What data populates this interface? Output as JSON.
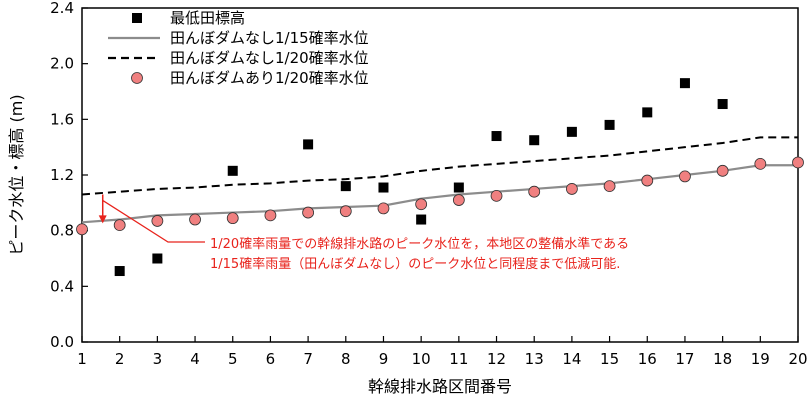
{
  "chart_data": {
    "type": "scatter",
    "xlabel": "幹線排水路区間番号",
    "ylabel": "ピーク水位・標高 (m)",
    "xlim": [
      1,
      20
    ],
    "ylim": [
      0.0,
      2.4
    ],
    "x_ticks": [
      1,
      2,
      3,
      4,
      5,
      6,
      7,
      8,
      9,
      10,
      11,
      12,
      13,
      14,
      15,
      16,
      17,
      18,
      19,
      20
    ],
    "y_ticks": [
      "0.0",
      "0.4",
      "0.8",
      "1.2",
      "1.6",
      "2.0",
      "2.4"
    ],
    "legend_position": "top-left",
    "series": [
      {
        "name": "最低田標高",
        "kind": "square-marker",
        "color": "#000000",
        "x": [
          2,
          3,
          5,
          7,
          8,
          9,
          10,
          11,
          12,
          13,
          14,
          15,
          16,
          17,
          18
        ],
        "y": [
          0.51,
          0.6,
          1.23,
          1.42,
          1.12,
          1.11,
          0.88,
          1.11,
          1.48,
          1.45,
          1.51,
          1.56,
          1.65,
          1.86,
          1.71
        ]
      },
      {
        "name": "田んぼダムなし1/15確率水位",
        "kind": "solid-line",
        "color": "#8c8c8c",
        "x": [
          1,
          2,
          3,
          4,
          5,
          6,
          7,
          8,
          9,
          10,
          11,
          12,
          13,
          14,
          15,
          16,
          17,
          18,
          19,
          20
        ],
        "y": [
          0.86,
          0.88,
          0.91,
          0.92,
          0.93,
          0.94,
          0.96,
          0.97,
          0.98,
          1.03,
          1.06,
          1.08,
          1.1,
          1.12,
          1.14,
          1.17,
          1.2,
          1.23,
          1.27,
          1.27
        ]
      },
      {
        "name": "田んぼダムなし1/20確率水位",
        "kind": "dashed-line",
        "color": "#000000",
        "x": [
          1,
          2,
          3,
          4,
          5,
          6,
          7,
          8,
          9,
          10,
          11,
          12,
          13,
          14,
          15,
          16,
          17,
          18,
          19,
          20
        ],
        "y": [
          1.06,
          1.08,
          1.1,
          1.11,
          1.13,
          1.14,
          1.16,
          1.17,
          1.19,
          1.23,
          1.26,
          1.28,
          1.3,
          1.32,
          1.34,
          1.37,
          1.4,
          1.43,
          1.47,
          1.47
        ]
      },
      {
        "name": "田んぼダムあり1/20確率水位",
        "kind": "circle-marker",
        "color": "#f08080",
        "x": [
          1,
          2,
          3,
          4,
          5,
          6,
          7,
          8,
          9,
          10,
          11,
          12,
          13,
          14,
          15,
          16,
          17,
          18,
          19,
          20
        ],
        "y": [
          0.81,
          0.84,
          0.87,
          0.88,
          0.89,
          0.91,
          0.93,
          0.94,
          0.96,
          0.99,
          1.02,
          1.05,
          1.08,
          1.1,
          1.12,
          1.16,
          1.19,
          1.23,
          1.28,
          1.29
        ]
      }
    ],
    "annotation": {
      "lines": [
        "1/20確率雨量での幹線排水路のピーク水位を，本地区の整備水準である",
        "1/15確率雨量（田んぼダムなし）のピーク水位と同程度まで低減可能."
      ],
      "color": "#e8231c",
      "arrow_x": 1.55,
      "arrow_from_y": 1.06,
      "arrow_to_y": 0.86
    }
  }
}
